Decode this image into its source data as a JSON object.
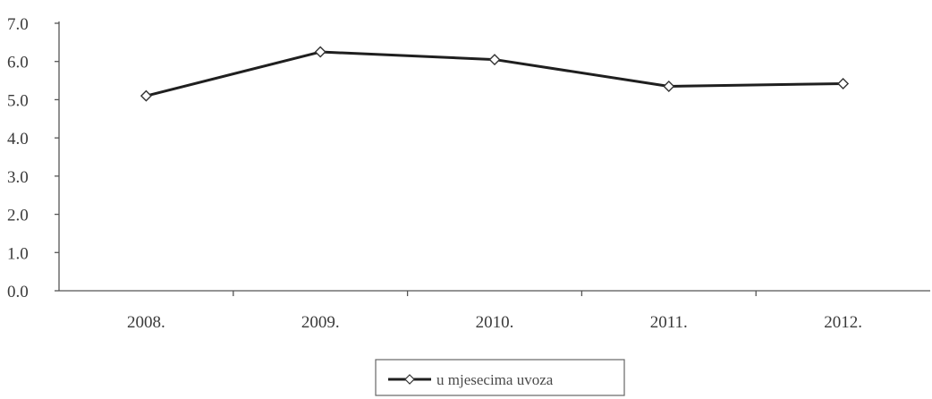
{
  "chart_data": {
    "type": "line",
    "categories": [
      "2008.",
      "2009.",
      "2010.",
      "2011.",
      "2012."
    ],
    "series": [
      {
        "name": "u mjesecima uvoza",
        "values": [
          5.1,
          6.25,
          6.05,
          5.35,
          5.42
        ],
        "color": "#1f1f1f",
        "marker": "diamond",
        "marker_fill": "#ffffff"
      }
    ],
    "y_ticks": [
      "0.0",
      "1.0",
      "2.0",
      "3.0",
      "4.0",
      "5.0",
      "6.0",
      "7.0"
    ],
    "ylim": [
      0,
      7
    ],
    "grid": false,
    "legend_position": "bottom-center",
    "axis_color": "#555555"
  }
}
